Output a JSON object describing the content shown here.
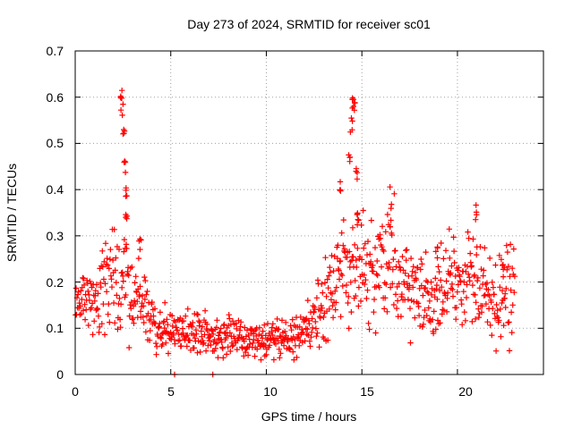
{
  "chart_data": {
    "type": "scatter",
    "title": "Day 273 of 2024, SRMTID for receiver sc01",
    "xlabel": "GPS time / hours",
    "ylabel": "SRMTID / TECUs",
    "xlim": [
      0,
      24.5
    ],
    "ylim": [
      0,
      0.7
    ],
    "xticks": [
      "0",
      "5",
      "10",
      "15",
      "20"
    ],
    "yticks": [
      "0",
      "0.1",
      "0.2",
      "0.3",
      "0.4",
      "0.5",
      "0.6",
      "0.7"
    ],
    "grid": true,
    "marker": "+",
    "color": "#ff0000",
    "series": [
      {
        "name": "SRMTID",
        "profile_x": [
          0,
          0.5,
          1,
          1.5,
          2,
          2.5,
          3,
          3.5,
          4,
          4.5,
          5,
          5.5,
          6,
          6.5,
          7,
          7.5,
          8,
          8.5,
          9,
          9.5,
          10,
          10.5,
          11,
          11.5,
          12,
          12.5,
          13,
          13.5,
          14,
          14.5,
          15,
          15.5,
          16,
          16.5,
          17,
          17.5,
          18,
          18.5,
          19,
          19.5,
          20,
          20.5,
          21,
          21.5,
          22,
          22.5,
          23
        ],
        "profile_y": [
          0.16,
          0.14,
          0.16,
          0.2,
          0.21,
          0.22,
          0.18,
          0.15,
          0.11,
          0.1,
          0.1,
          0.09,
          0.09,
          0.09,
          0.09,
          0.08,
          0.08,
          0.08,
          0.08,
          0.08,
          0.08,
          0.08,
          0.08,
          0.08,
          0.09,
          0.12,
          0.15,
          0.2,
          0.22,
          0.25,
          0.23,
          0.22,
          0.25,
          0.27,
          0.2,
          0.19,
          0.18,
          0.17,
          0.2,
          0.19,
          0.18,
          0.2,
          0.22,
          0.17,
          0.16,
          0.18,
          0.18
        ],
        "spikes": [
          {
            "x": 2.4,
            "y": 0.63
          },
          {
            "x": 2.45,
            "y": 0.6
          },
          {
            "x": 2.55,
            "y": 0.53
          },
          {
            "x": 2.6,
            "y": 0.47
          },
          {
            "x": 2.65,
            "y": 0.42
          },
          {
            "x": 2.7,
            "y": 0.37
          },
          {
            "x": 3.4,
            "y": 0.31
          },
          {
            "x": 14.35,
            "y": 0.48
          },
          {
            "x": 14.45,
            "y": 0.56
          },
          {
            "x": 14.55,
            "y": 0.6
          },
          {
            "x": 14.6,
            "y": 0.61
          },
          {
            "x": 14.7,
            "y": 0.46
          },
          {
            "x": 14.8,
            "y": 0.36
          },
          {
            "x": 13.9,
            "y": 0.42
          },
          {
            "x": 16.5,
            "y": 0.34
          },
          {
            "x": 21.0,
            "y": 0.37
          },
          {
            "x": 18.9,
            "y": 0.29
          },
          {
            "x": 22.4,
            "y": 0.25
          }
        ],
        "zero_points": [
          {
            "x": 5.2,
            "y": 0.0
          },
          {
            "x": 7.2,
            "y": 0.0
          }
        ]
      }
    ]
  }
}
